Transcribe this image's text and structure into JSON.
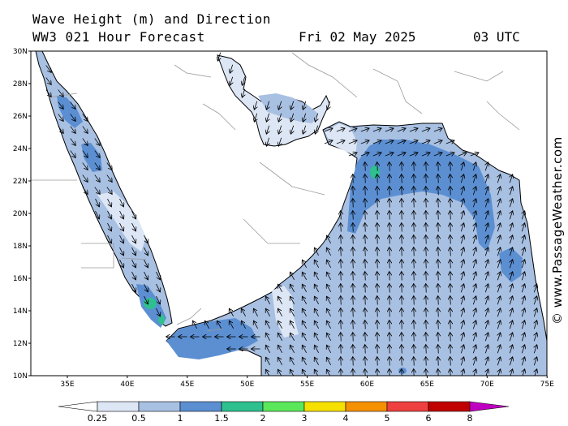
{
  "header": {
    "title": "Wave Height (m) and Direction",
    "model_line": "WW3 021 Hour Forecast",
    "date": "Fri 02 May 2025",
    "time": "03 UTC"
  },
  "credit": "© www.PassageWeather.com",
  "axes": {
    "lat_labels": [
      "30N",
      "28N",
      "26N",
      "24N",
      "22N",
      "20N",
      "18N",
      "16N",
      "14N",
      "12N",
      "10N"
    ],
    "lon_labels": [
      "35E",
      "40E",
      "45E",
      "50E",
      "55E",
      "60E",
      "65E",
      "70E",
      "75E"
    ]
  },
  "legend": {
    "levels": [
      "0.25",
      "0.5",
      "1",
      "1.5",
      "2",
      "3",
      "4",
      "5",
      "6",
      "8"
    ],
    "colors": [
      "#ffffff",
      "#dde6f5",
      "#a8c0e2",
      "#5b8fd2",
      "#2ec08f",
      "#5ae85a",
      "#f5e000",
      "#f59000",
      "#ee4040",
      "#c00000",
      "#c000c0"
    ]
  },
  "colors": {
    "land": "#ffffff",
    "sea_low": "#dde6f5",
    "sea_mid": "#a8c0e2",
    "sea_high": "#5b8fd2",
    "sea_peak": "#2ec08f",
    "coast": "#000000",
    "border": "#9a9a9a"
  }
}
